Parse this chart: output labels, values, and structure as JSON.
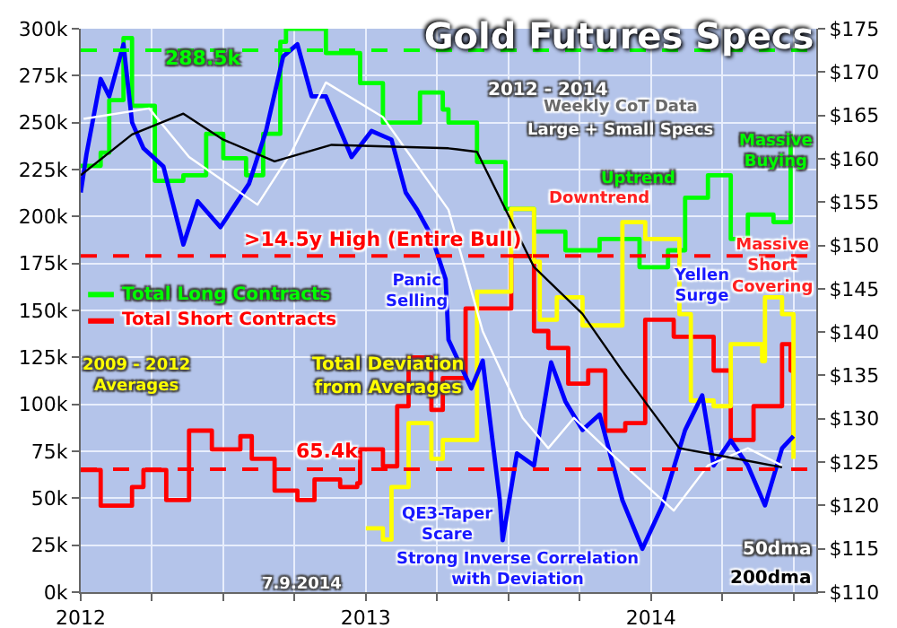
{
  "chart_data": {
    "type": "line",
    "title": "Gold Futures Specs",
    "subtitle": "2012 - 2014",
    "xlim": [
      2012,
      2014.58
    ],
    "xticks": [
      2012,
      {
        "value": 2012.25,
        "label": null
      },
      {
        "value": 2012.5,
        "label": null
      },
      {
        "value": 2012.75,
        "label": null
      },
      2013,
      {
        "value": 2013.25,
        "label": null
      },
      {
        "value": 2013.5,
        "label": null
      },
      {
        "value": 2013.75,
        "label": null
      },
      2014,
      {
        "value": 2014.25,
        "label": null
      },
      {
        "value": 2014.5,
        "label": null
      }
    ],
    "ylim": [
      0,
      300
    ],
    "yticks": [
      {
        "value": 0,
        "label": "0k"
      },
      {
        "value": 25,
        "label": "25k"
      },
      {
        "value": 50,
        "label": "50k"
      },
      {
        "value": 75,
        "label": "75k"
      },
      {
        "value": 100,
        "label": "100k"
      },
      {
        "value": 125,
        "label": "125k"
      },
      {
        "value": 150,
        "label": "150k"
      },
      {
        "value": 175,
        "label": "175k"
      },
      {
        "value": 200,
        "label": "200k"
      },
      {
        "value": 225,
        "label": "225k"
      },
      {
        "value": 250,
        "label": "250k"
      },
      {
        "value": 275,
        "label": "275k"
      },
      {
        "value": 300,
        "label": "300k"
      }
    ],
    "y2lim": [
      110,
      175
    ],
    "y2ticks": [
      {
        "value": 110,
        "label": "$110"
      },
      {
        "value": 115,
        "label": "$115"
      },
      {
        "value": 120,
        "label": "$120"
      },
      {
        "value": 125,
        "label": "$125"
      },
      {
        "value": 130,
        "label": "$130"
      },
      {
        "value": 135,
        "label": "$135"
      },
      {
        "value": 140,
        "label": "$140"
      },
      {
        "value": 145,
        "label": "$145"
      },
      {
        "value": 150,
        "label": "$150"
      },
      {
        "value": 155,
        "label": "$155"
      },
      {
        "value": 160,
        "label": "$160"
      },
      {
        "value": 165,
        "label": "$165"
      },
      {
        "value": 170,
        "label": "$170"
      },
      {
        "value": 175,
        "label": "$175"
      }
    ],
    "grid": true,
    "legend": "left",
    "series": [
      {
        "name": "Total Long Contracts",
        "type": "step",
        "color": "#00ff00",
        "x": [
          2012.0,
          2012.07,
          2012.1,
          2012.15,
          2012.18,
          2012.26,
          2012.36,
          2012.44,
          2012.5,
          2012.58,
          2012.64,
          2012.7,
          2012.72,
          2012.8,
          2012.86,
          2012.98,
          2013.06,
          2013.19,
          2013.27,
          2013.29,
          2013.39,
          2013.49,
          2013.59,
          2013.7,
          2013.82,
          2013.96,
          2014.06,
          2014.12,
          2014.2,
          2014.28,
          2014.34,
          2014.43,
          2014.46,
          2014.49
        ],
        "values": [
          227,
          234,
          262,
          295,
          259,
          219,
          222,
          244,
          231,
          222,
          244,
          293,
          300,
          300,
          287,
          271,
          250,
          266,
          257,
          250,
          229,
          204,
          192,
          182,
          188,
          173,
          182,
          210,
          222,
          188,
          201,
          197,
          197,
          244
        ]
      },
      {
        "name": "Total Short Contracts",
        "type": "step",
        "color": "#ff0000",
        "x": [
          2012.0,
          2012.07,
          2012.18,
          2012.22,
          2012.3,
          2012.38,
          2012.46,
          2012.56,
          2012.6,
          2012.68,
          2012.76,
          2012.82,
          2012.91,
          2012.97,
          2012.98,
          2013.06,
          2013.11,
          2013.15,
          2013.23,
          2013.27,
          2013.35,
          2013.51,
          2013.59,
          2013.64,
          2013.71,
          2013.78,
          2013.84,
          2013.91,
          2013.98,
          2014.08,
          2014.12,
          2014.22,
          2014.28,
          2014.36,
          2014.43,
          2014.46,
          2014.49,
          2014.5
        ],
        "values": [
          65,
          46,
          56,
          65,
          49,
          86,
          76,
          83,
          71,
          54,
          49,
          60,
          56,
          58,
          76,
          67,
          99,
          125,
          97,
          114,
          151,
          179,
          139,
          130,
          111,
          118,
          86,
          90,
          145,
          136,
          136,
          118,
          81,
          99,
          99,
          132,
          118,
          83
        ]
      },
      {
        "name": "Total Deviation from Averages",
        "type": "step",
        "color": "#ffff00",
        "x": [
          2013.0,
          2013.06,
          2013.09,
          2013.15,
          2013.23,
          2013.27,
          2013.39,
          2013.51,
          2013.59,
          2013.61,
          2013.67,
          2013.76,
          2013.9,
          2013.98,
          2014.1,
          2014.14,
          2014.22,
          2014.28,
          2014.39,
          2014.4,
          2014.46,
          2014.5
        ],
        "values": [
          34,
          28,
          56,
          90,
          71,
          81,
          160,
          204,
          176,
          145,
          157,
          142,
          197,
          188,
          148,
          102,
          99,
          132,
          123,
          157,
          148,
          71
        ]
      },
      {
        "type": "line",
        "axis": "y2",
        "color": "#0000ff",
        "x": [
          2012.0,
          2012.02,
          2012.07,
          2012.1,
          2012.15,
          2012.18,
          2012.22,
          2012.29,
          2012.36,
          2012.41,
          2012.49,
          2012.53,
          2012.59,
          2012.65,
          2012.71,
          2012.76,
          2012.81,
          2012.86,
          2012.95,
          2013.02,
          2013.09,
          2013.14,
          2013.18,
          2013.23,
          2013.28,
          2013.29,
          2013.37,
          2013.41,
          2013.47,
          2013.48,
          2013.53,
          2013.59,
          2013.65,
          2013.7,
          2013.76,
          2013.82,
          2013.9,
          2013.97,
          2014.04,
          2014.12,
          2014.18,
          2014.22,
          2014.28,
          2014.34,
          2014.4,
          2014.46,
          2014.5
        ],
        "values": [
          156.1,
          160.5,
          169.2,
          167.2,
          173.2,
          164.2,
          161.2,
          159.1,
          150.1,
          155.1,
          152.1,
          154.1,
          157.1,
          163.2,
          171.8,
          173.2,
          167.2,
          167.2,
          160.2,
          163.2,
          162.2,
          156.1,
          154.1,
          151.1,
          146.1,
          139.1,
          133.5,
          136.7,
          120.6,
          116,
          126,
          124.6,
          136.5,
          132,
          128.7,
          130.5,
          120.6,
          115,
          120,
          128.7,
          132.7,
          124.6,
          127.5,
          124.6,
          120,
          126.6,
          128
        ]
      },
      {
        "name": "50dma",
        "type": "line",
        "axis": "y2",
        "color": "#ffffff",
        "x": [
          2012.01,
          2012.24,
          2012.38,
          2012.62,
          2012.74,
          2012.86,
          2013.06,
          2013.29,
          2013.41,
          2013.55,
          2013.64,
          2013.73,
          2013.88,
          2014.08,
          2014.2,
          2014.34,
          2014.46
        ],
        "values": [
          164.6,
          165.8,
          160.2,
          154.7,
          160.8,
          168.8,
          164.8,
          154.1,
          140.1,
          130.1,
          126.6,
          130.1,
          125.4,
          119.4,
          124.6,
          126.6,
          124.6
        ]
      },
      {
        "name": "200dma",
        "type": "line",
        "axis": "y2",
        "color": "#000000",
        "x": [
          2012.0,
          2012.18,
          2012.36,
          2012.5,
          2012.68,
          2012.88,
          2013.29,
          2013.39,
          2013.59,
          2013.76,
          2013.9,
          2014.1,
          2014.3,
          2014.46
        ],
        "values": [
          158.1,
          162.8,
          165.2,
          162.2,
          159.7,
          161.6,
          161.2,
          160.8,
          147.5,
          142.1,
          135.5,
          126.6,
          125.4,
          124.4
        ]
      }
    ],
    "ref_lines": [
      {
        "axis": "y",
        "value": 288.5,
        "label": "288.5k",
        "color": "#00ff00",
        "line_style": "dashed"
      },
      {
        "axis": "y",
        "value": 179,
        "label": ">14.5y High (Entire Bull)",
        "color": "#ff0000",
        "line_style": "dashed"
      },
      {
        "axis": "y",
        "value": 65.4,
        "label": "65.4k",
        "color": "#ff0000",
        "line_style": "dashed"
      }
    ],
    "annotations": [
      "Weekly CoT Data",
      "Large + Small Specs",
      "2009 - 2012 Averages",
      "Panic Selling",
      "Downtrend",
      "Uptrend",
      "Massive Buying",
      "Massive Short Covering",
      "Yellen Surge",
      "QE3-Taper Scare",
      "Strong Inverse Correlation with Deviation",
      "7.9.2014"
    ]
  }
}
